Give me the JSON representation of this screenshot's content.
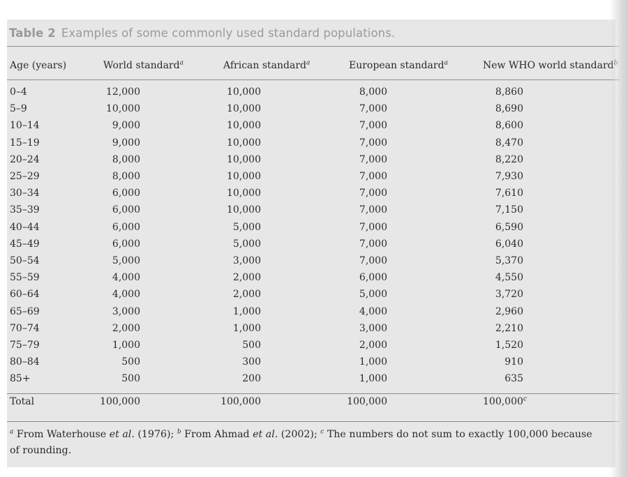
{
  "table": {
    "label": "Table 2",
    "caption": "Examples of some commonly used standard populations.",
    "headers": {
      "age": "Age (years)",
      "world": "World standard",
      "world_mark": "a",
      "african": "African standard",
      "african_mark": "a",
      "european": "European standard",
      "european_mark": "a",
      "who": "New WHO world standard",
      "who_mark": "b"
    },
    "rows": [
      {
        "age": "0–4",
        "world": "12,000",
        "african": "10,000",
        "european": "8,000",
        "who": "8,860"
      },
      {
        "age": "5–9",
        "world": "10,000",
        "african": "10,000",
        "european": "7,000",
        "who": "8,690"
      },
      {
        "age": "10–14",
        "world": "9,000",
        "african": "10,000",
        "european": "7,000",
        "who": "8,600"
      },
      {
        "age": "15–19",
        "world": "9,000",
        "african": "10,000",
        "european": "7,000",
        "who": "8,470"
      },
      {
        "age": "20–24",
        "world": "8,000",
        "african": "10,000",
        "european": "7,000",
        "who": "8,220"
      },
      {
        "age": "25–29",
        "world": "8,000",
        "african": "10,000",
        "european": "7,000",
        "who": "7,930"
      },
      {
        "age": "30–34",
        "world": "6,000",
        "african": "10,000",
        "european": "7,000",
        "who": "7,610"
      },
      {
        "age": "35–39",
        "world": "6,000",
        "african": "10,000",
        "european": "7,000",
        "who": "7,150"
      },
      {
        "age": "40–44",
        "world": "6,000",
        "african": "5,000",
        "european": "7,000",
        "who": "6,590"
      },
      {
        "age": "45–49",
        "world": "6,000",
        "african": "5,000",
        "european": "7,000",
        "who": "6,040"
      },
      {
        "age": "50–54",
        "world": "5,000",
        "african": "3,000",
        "european": "7,000",
        "who": "5,370"
      },
      {
        "age": "55–59",
        "world": "4,000",
        "african": "2,000",
        "european": "6,000",
        "who": "4,550"
      },
      {
        "age": "60–64",
        "world": "4,000",
        "african": "2,000",
        "european": "5,000",
        "who": "3,720"
      },
      {
        "age": "65–69",
        "world": "3,000",
        "african": "1,000",
        "european": "4,000",
        "who": "2,960"
      },
      {
        "age": "70–74",
        "world": "2,000",
        "african": "1,000",
        "european": "3,000",
        "who": "2,210"
      },
      {
        "age": "75–79",
        "world": "1,000",
        "african": "500",
        "european": "2,000",
        "who": "1,520"
      },
      {
        "age": "80–84",
        "world": "500",
        "african": "300",
        "european": "1,000",
        "who": "910"
      },
      {
        "age": "85+",
        "world": "500",
        "african": "200",
        "european": "1,000",
        "who": "635"
      }
    ],
    "total": {
      "age": "Total",
      "world": "100,000",
      "african": "100,000",
      "european": "100,000",
      "who": "100,000",
      "who_mark": "c"
    },
    "footnote": {
      "a_mark": "a",
      "a_prefix": "From Waterhouse ",
      "a_etal": "et al.",
      "a_year": " (1976); ",
      "b_mark": "b",
      "b_prefix": "From Ahmad ",
      "b_etal": "et al.",
      "b_year": " (2002); ",
      "c_mark": "c",
      "c_text": "The numbers do not sum to exactly 100,000 because of rounding."
    }
  }
}
